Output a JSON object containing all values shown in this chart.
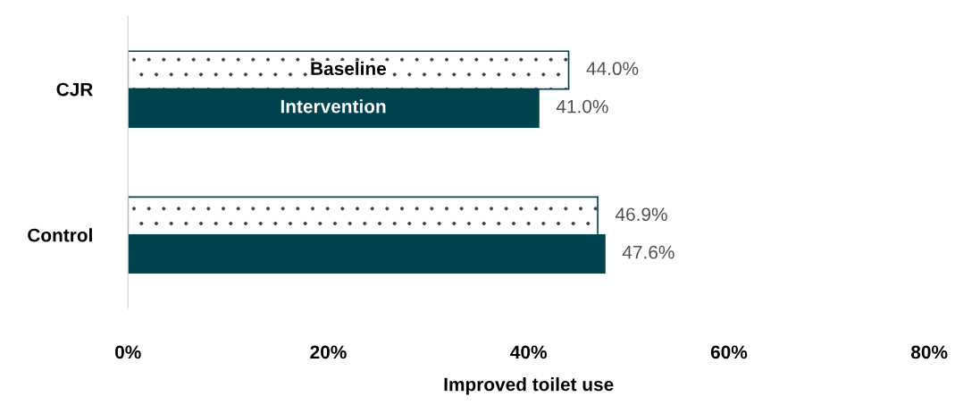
{
  "chart_data": {
    "type": "bar",
    "orientation": "horizontal",
    "xlabel": "Improved toilet use",
    "categories": [
      "CJR",
      "Control"
    ],
    "series": [
      {
        "name": "Baseline",
        "color": "#ffffff",
        "values": [
          44.0,
          46.9
        ],
        "value_labels": [
          "44.0%",
          "46.9%"
        ]
      },
      {
        "name": "Intervention",
        "color": "#00434f",
        "values": [
          41.0,
          47.6
        ],
        "value_labels": [
          "41.0%",
          "47.6%"
        ]
      }
    ],
    "xlim": [
      0,
      80
    ],
    "xticks": [
      {
        "value": 0,
        "label": "0%"
      },
      {
        "value": 20,
        "label": "20%"
      },
      {
        "value": 40,
        "label": "40%"
      },
      {
        "value": 60,
        "label": "60%"
      },
      {
        "value": 80,
        "label": "80%"
      }
    ],
    "grid": false,
    "legend": false
  }
}
